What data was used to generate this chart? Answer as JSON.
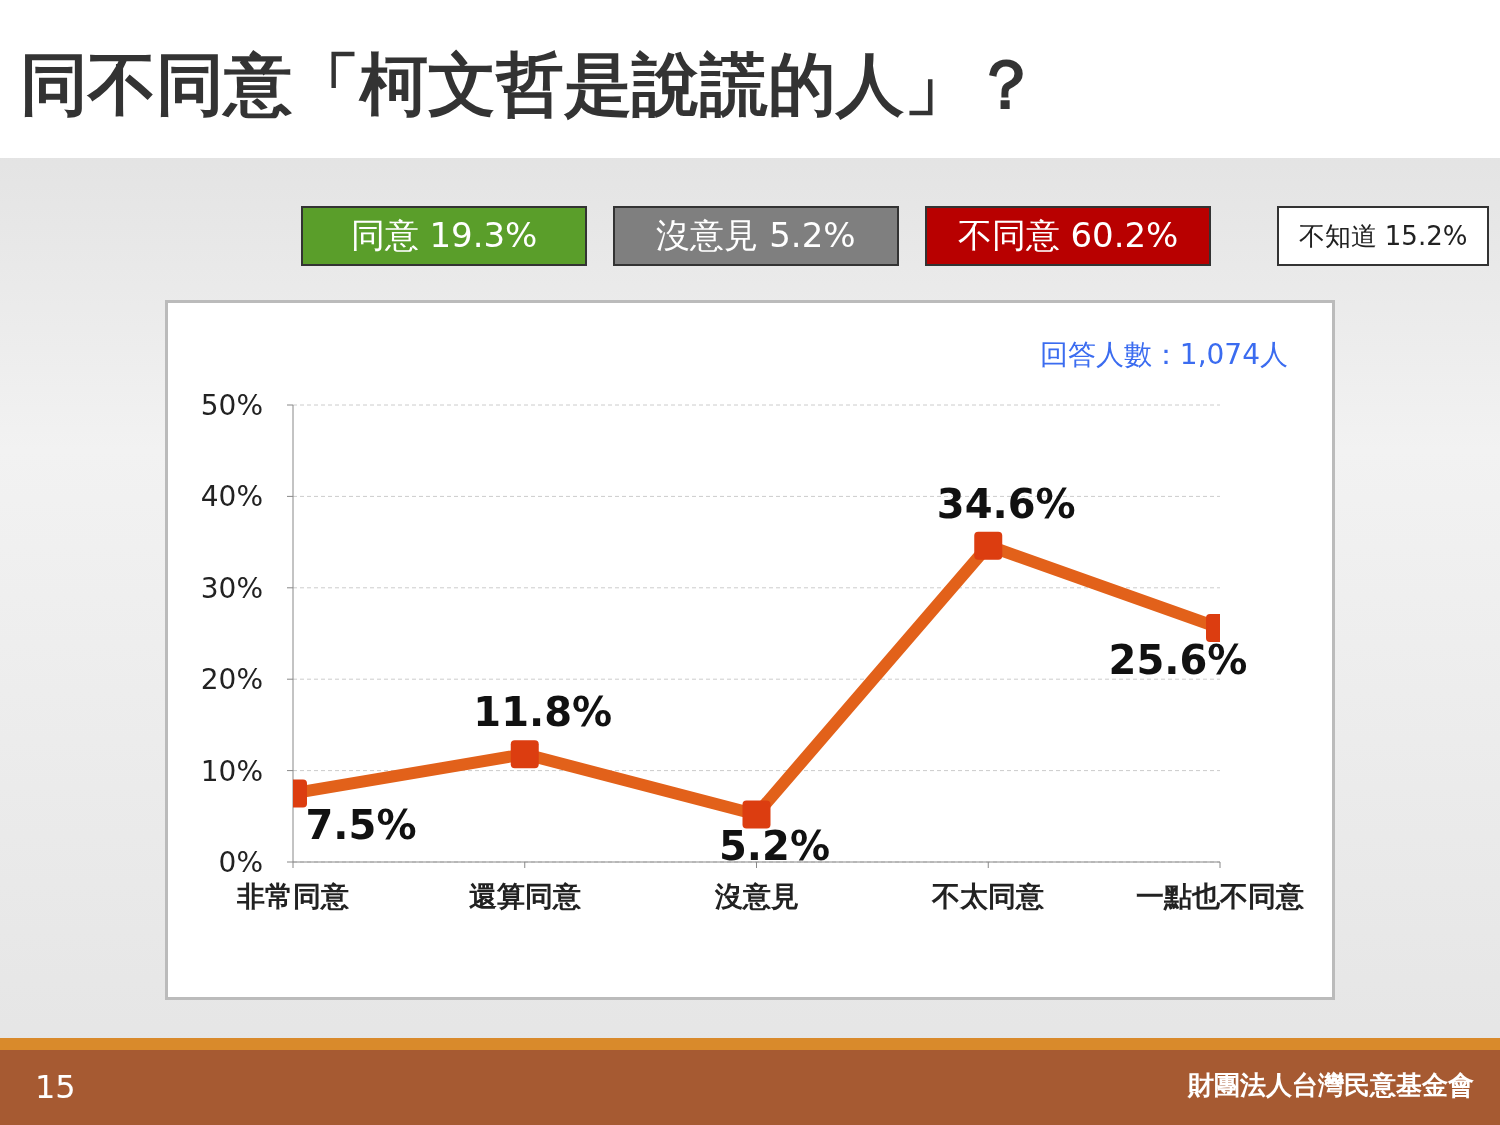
{
  "chart_data": {
    "type": "line",
    "title": "同不同意「柯文哲是說謊的人」？",
    "categories": [
      "非常同意",
      "還算同意",
      "沒意見",
      "不太同意",
      "一點也不同意"
    ],
    "series": [
      {
        "color": "#e2611a",
        "values": [
          7.5,
          11.8,
          5.2,
          34.6,
          25.6
        ],
        "value_labels": [
          "7.5%",
          "11.8%",
          "5.2%",
          "34.6%",
          "25.6%"
        ]
      }
    ],
    "ylim": [
      0,
      50
    ],
    "yticks": [
      {
        "value": 0,
        "label": "0%"
      },
      {
        "value": 10,
        "label": "10%"
      },
      {
        "value": 20,
        "label": "20%"
      },
      {
        "value": 30,
        "label": "30%"
      },
      {
        "value": 40,
        "label": "40%"
      },
      {
        "value": 50,
        "label": "50%"
      }
    ],
    "grid": "y",
    "marker": "square",
    "line_style": "solid",
    "annotations": [
      "同意 19.3%",
      "沒意見 5.2%",
      "不同意 60.2%",
      "不知道 15.2%",
      "回答人數：1,074人",
      "15",
      "財團法人台灣民意基金會"
    ]
  }
}
